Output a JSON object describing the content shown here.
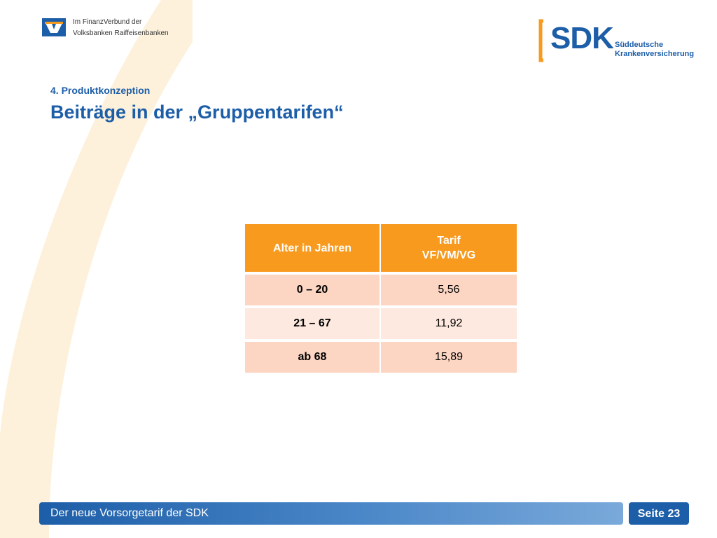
{
  "header": {
    "vb_line1": "Im FinanzVerbund der",
    "vb_line2": "Volksbanken Raiffeisenbanken",
    "sdk_logo": "SDK",
    "sdk_sub1": "Süddeutsche",
    "sdk_sub2": "Krankenversicherung"
  },
  "slide": {
    "section": "4. Produktkonzeption",
    "title": "Beiträge in der „Gruppentarifen“"
  },
  "table": {
    "col1_header": "Alter in Jahren",
    "col2_header_line1": "Tarif",
    "col2_header_line2": "VF/VM/VG",
    "rows": [
      {
        "age": "0 – 20",
        "value": "5,56"
      },
      {
        "age": "21 – 67",
        "value": "11,92"
      },
      {
        "age": "ab 68",
        "value": "15,89"
      }
    ]
  },
  "footer": {
    "text": "Der neue Vorsorgetarif der SDK",
    "page": "Seite 23"
  },
  "colors": {
    "brand_blue": "#1d5ea8",
    "header_orange": "#f79a1e",
    "row_dark": "#fcd5c3",
    "row_light": "#fde9df",
    "swoosh": "#fdf1dc"
  }
}
